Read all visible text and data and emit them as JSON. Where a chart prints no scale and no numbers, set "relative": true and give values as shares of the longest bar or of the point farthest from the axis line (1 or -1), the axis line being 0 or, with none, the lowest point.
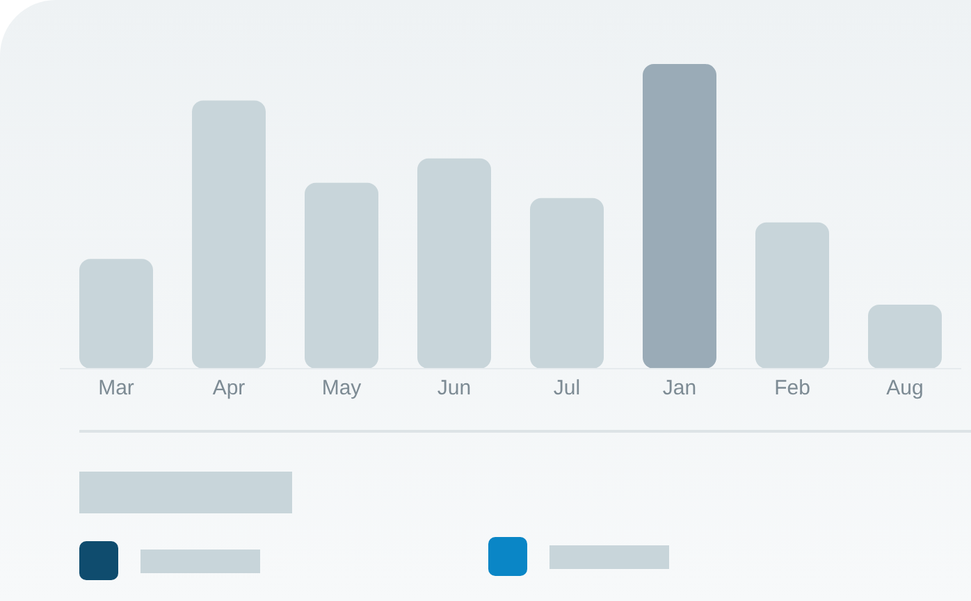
{
  "chart_data": {
    "type": "bar",
    "relative": true,
    "categories": [
      "Mar",
      "Apr",
      "May",
      "Jun",
      "Jul",
      "Jan",
      "Feb",
      "Aug"
    ],
    "values": [
      0.36,
      0.88,
      0.61,
      0.69,
      0.56,
      1,
      0.48,
      0.21
    ],
    "colors": [
      "#c8d5da",
      "#c8d5da",
      "#c8d5da",
      "#c8d5da",
      "#c8d5da",
      "#9aabb7",
      "#c8d5da",
      "#c8d5da"
    ]
  }
}
